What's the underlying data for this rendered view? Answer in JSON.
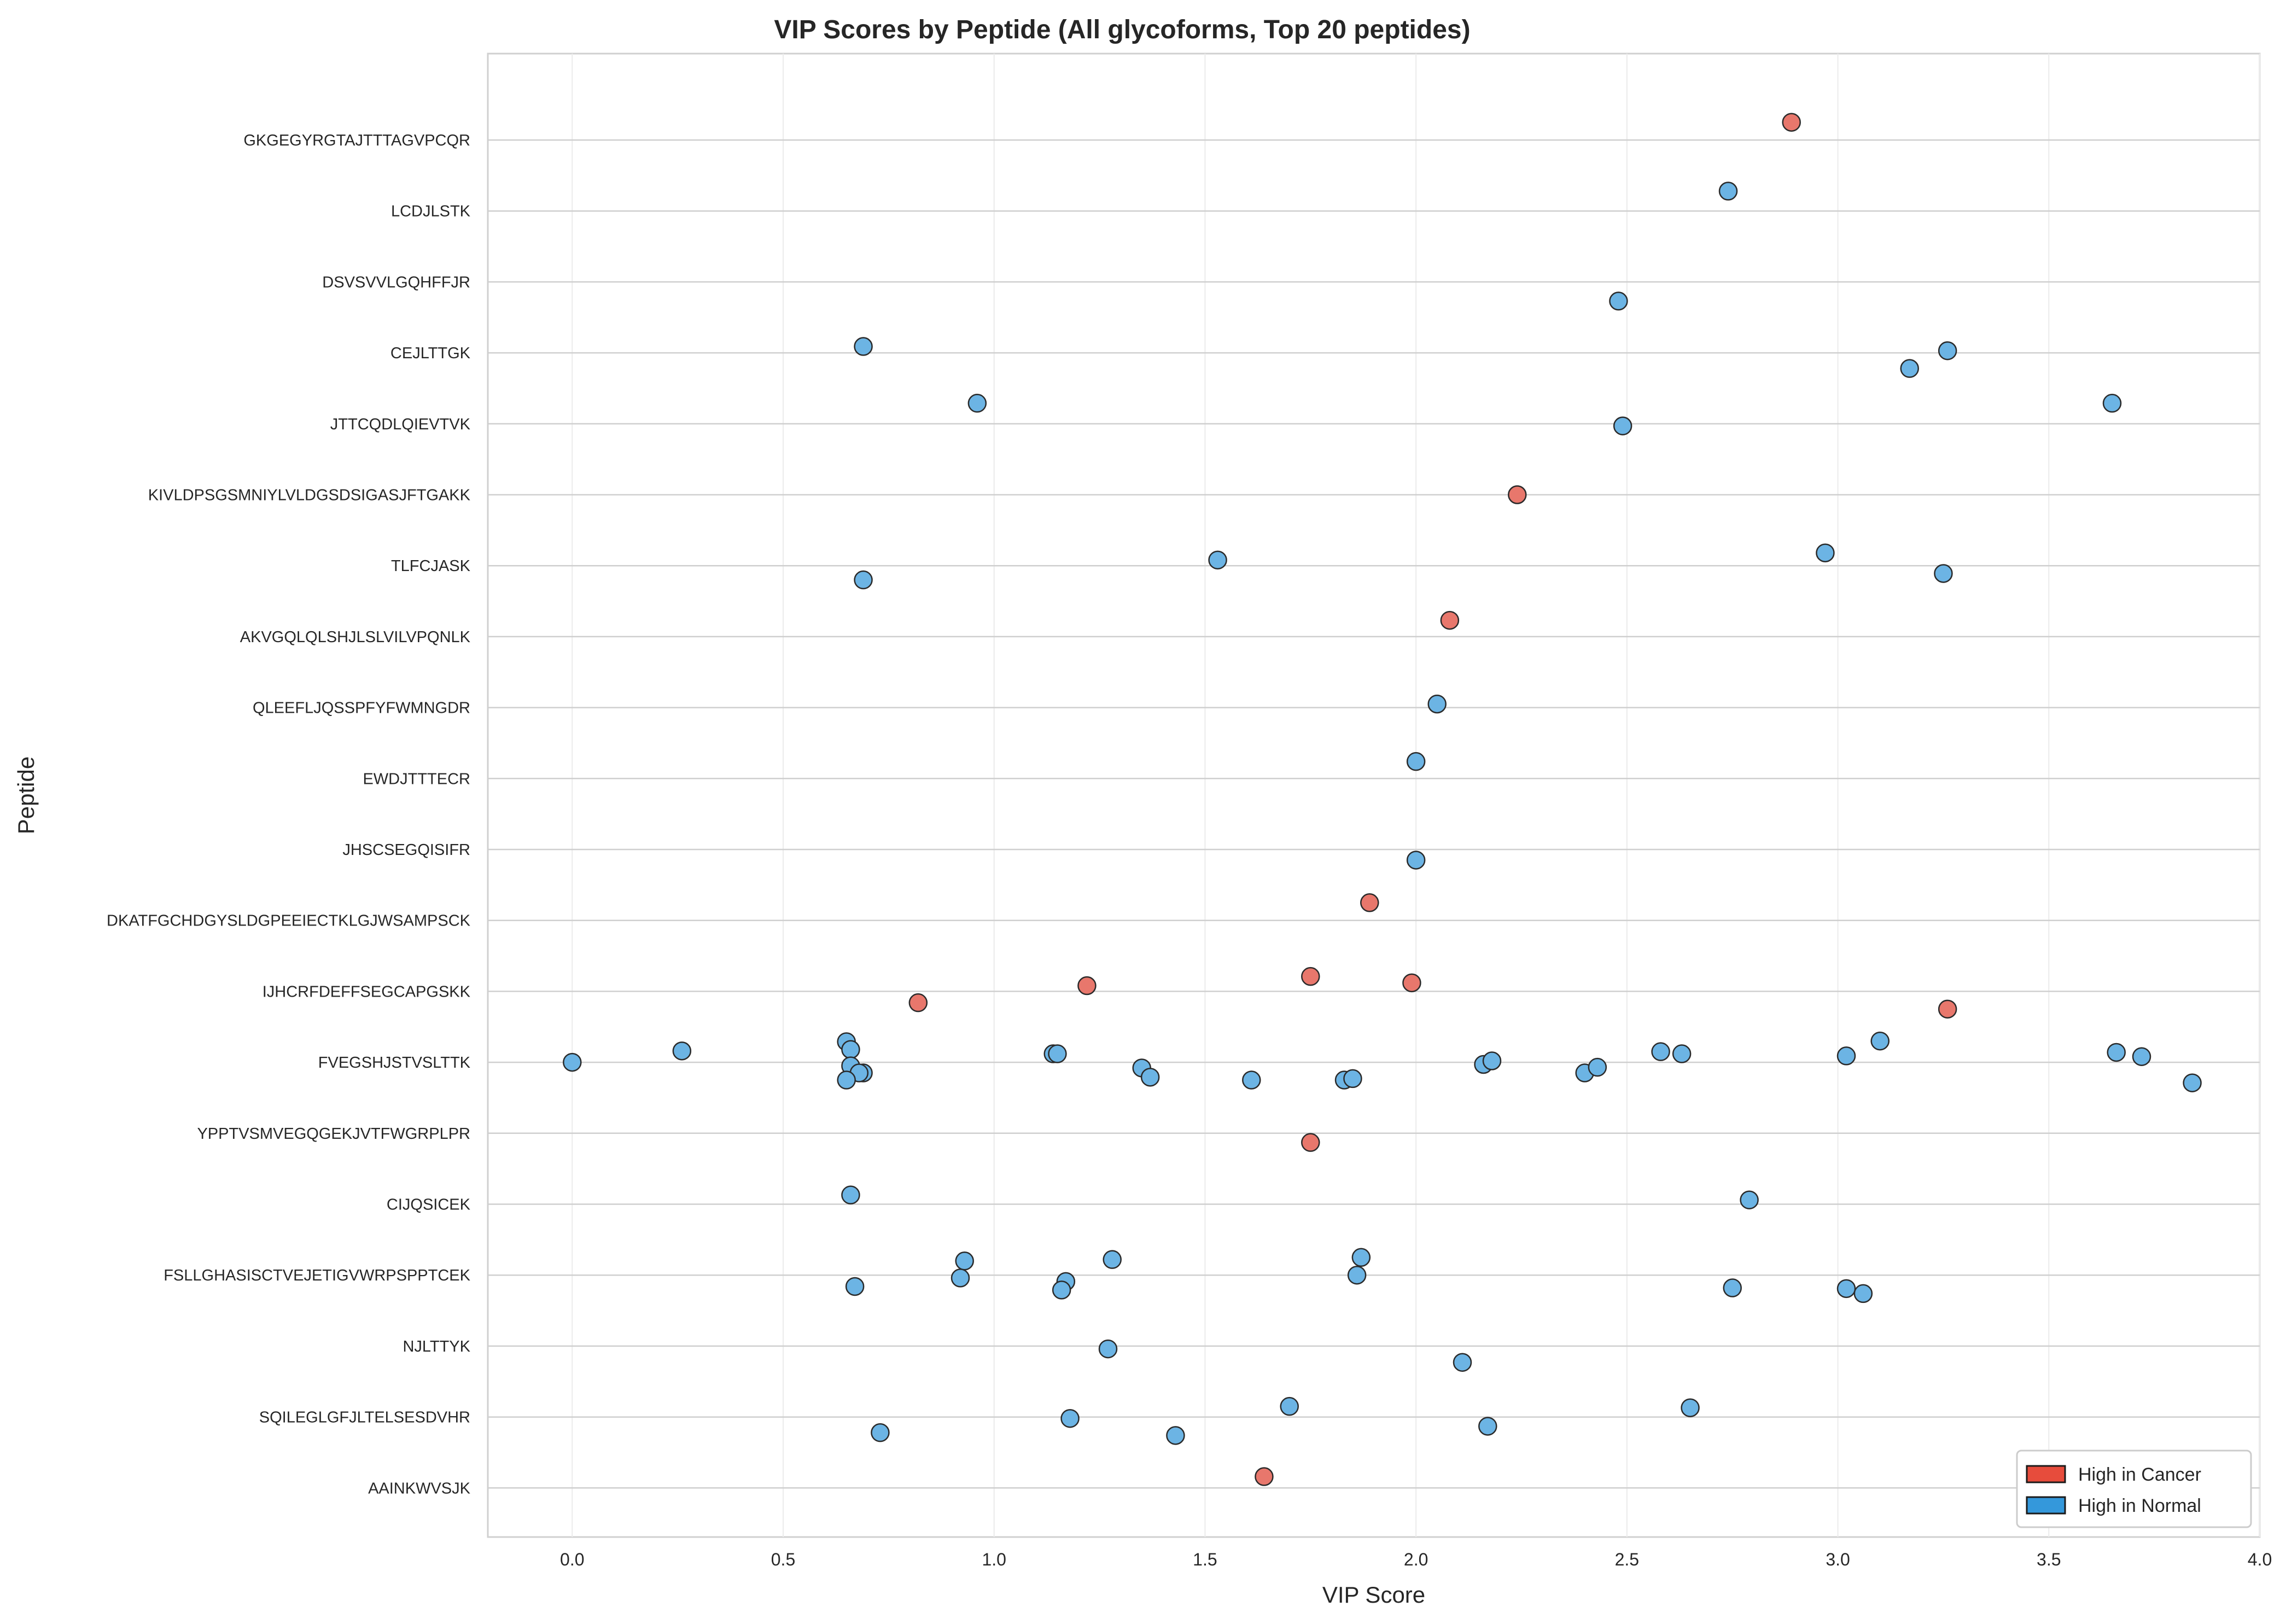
{
  "chart_data": {
    "type": "scatter",
    "title": "VIP Scores by Peptide (All glycoforms, Top 20 peptides)",
    "xlabel": "VIP Score",
    "ylabel": "Peptide",
    "xlim": [
      -0.2,
      4.0
    ],
    "xticks": [
      "0.0",
      "0.5",
      "1.0",
      "1.5",
      "2.0",
      "2.5",
      "3.0",
      "3.5",
      "4.0"
    ],
    "grid": true,
    "legend_position": "bottom-right",
    "colors": {
      "cancer": "#E8776C",
      "normal": "#6CB4E4",
      "edge": "#2a2a2a",
      "legend_cancer": "#E74C3C",
      "legend_normal": "#3498DB"
    },
    "legend": [
      {
        "key": "cancer",
        "label": "High in Cancer"
      },
      {
        "key": "normal",
        "label": "High in Normal"
      }
    ],
    "categories": [
      "GKGEGYRGTAJTTTAGVPCQR",
      "LCDJLSTK",
      "DSVSVVLGQHFFJR",
      "CEJLTTGK",
      "JTTCQDLQIEVTVK",
      "KIVLDPSGSMNIYLVLDGSDSIGASJFTGAKK",
      "TLFCJASK",
      "AKVGQLQLSHJLSLVILVPQNLK",
      "QLEEFLJQSSPFYFWMNGDR",
      "EWDJTTTECR",
      "JHSCSEGQISIFR",
      "DKATFGCHDGYSLDGPEEIECTKLGJWSAMPSCK",
      "IJHCRFDEFFSEGCAPGSKK",
      "FVEGSHJSTVSLTTK",
      "YPPTVSMVEGQGEKJVTFWGRPLPR",
      "CIJQSICEK",
      "FSLLGHASISCTVEJETIGVWRPSPPTCEK",
      "NJLTTYK",
      "SQILEGLGFJLTELSESDVHR",
      "AAINKWVSJK"
    ],
    "points": [
      {
        "peptide": "GKGEGYRGTAJTTTAGVPCQR",
        "vip": 2.89,
        "group": "cancer",
        "jitter": -0.25
      },
      {
        "peptide": "LCDJLSTK",
        "vip": 2.74,
        "group": "normal",
        "jitter": -0.28
      },
      {
        "peptide": "DSVSVVLGQHFFJR",
        "vip": 2.48,
        "group": "normal",
        "jitter": 0.27
      },
      {
        "peptide": "CEJLTTGK",
        "vip": 0.69,
        "group": "normal",
        "jitter": -0.09
      },
      {
        "peptide": "CEJLTTGK",
        "vip": 3.26,
        "group": "normal",
        "jitter": -0.03
      },
      {
        "peptide": "CEJLTTGK",
        "vip": 3.17,
        "group": "normal",
        "jitter": 0.22
      },
      {
        "peptide": "JTTCQDLQIEVTVK",
        "vip": 0.96,
        "group": "normal",
        "jitter": -0.29
      },
      {
        "peptide": "JTTCQDLQIEVTVK",
        "vip": 3.65,
        "group": "normal",
        "jitter": -0.29
      },
      {
        "peptide": "JTTCQDLQIEVTVK",
        "vip": 2.49,
        "group": "normal",
        "jitter": 0.03
      },
      {
        "peptide": "KIVLDPSGSMNIYLVLDGSDSIGASJFTGAKK",
        "vip": 2.24,
        "group": "cancer",
        "jitter": 0.0
      },
      {
        "peptide": "TLFCJASK",
        "vip": 1.53,
        "group": "normal",
        "jitter": -0.08
      },
      {
        "peptide": "TLFCJASK",
        "vip": 2.97,
        "group": "normal",
        "jitter": -0.18
      },
      {
        "peptide": "TLFCJASK",
        "vip": 3.25,
        "group": "normal",
        "jitter": 0.11
      },
      {
        "peptide": "TLFCJASK",
        "vip": 0.69,
        "group": "normal",
        "jitter": 0.2
      },
      {
        "peptide": "AKVGQLQLSHJLSLVILVPQNLK",
        "vip": 2.08,
        "group": "cancer",
        "jitter": -0.23
      },
      {
        "peptide": "QLEEFLJQSSPFYFWMNGDR",
        "vip": 2.05,
        "group": "normal",
        "jitter": -0.05
      },
      {
        "peptide": "EWDJTTTECR",
        "vip": 2.0,
        "group": "normal",
        "jitter": -0.24
      },
      {
        "peptide": "JHSCSEGQISIFR",
        "vip": 2.0,
        "group": "normal",
        "jitter": 0.15
      },
      {
        "peptide": "DKATFGCHDGYSLDGPEEIECTKLGJWSAMPSCK",
        "vip": 1.89,
        "group": "cancer",
        "jitter": -0.25
      },
      {
        "peptide": "IJHCRFDEFFSEGCAPGSKK",
        "vip": 1.75,
        "group": "cancer",
        "jitter": -0.21
      },
      {
        "peptide": "IJHCRFDEFFSEGCAPGSKK",
        "vip": 1.99,
        "group": "cancer",
        "jitter": -0.12
      },
      {
        "peptide": "IJHCRFDEFFSEGCAPGSKK",
        "vip": 1.22,
        "group": "cancer",
        "jitter": -0.08
      },
      {
        "peptide": "IJHCRFDEFFSEGCAPGSKK",
        "vip": 0.82,
        "group": "cancer",
        "jitter": 0.16
      },
      {
        "peptide": "IJHCRFDEFFSEGCAPGSKK",
        "vip": 3.26,
        "group": "cancer",
        "jitter": 0.25
      },
      {
        "peptide": "FVEGSHJSTVSLTTK",
        "vip": 0.0,
        "group": "normal",
        "jitter": 0.0
      },
      {
        "peptide": "FVEGSHJSTVSLTTK",
        "vip": 0.26,
        "group": "normal",
        "jitter": -0.16
      },
      {
        "peptide": "FVEGSHJSTVSLTTK",
        "vip": 0.65,
        "group": "normal",
        "jitter": -0.29
      },
      {
        "peptide": "FVEGSHJSTVSLTTK",
        "vip": 0.66,
        "group": "normal",
        "jitter": -0.18
      },
      {
        "peptide": "FVEGSHJSTVSLTTK",
        "vip": 0.66,
        "group": "normal",
        "jitter": 0.05
      },
      {
        "peptide": "FVEGSHJSTVSLTTK",
        "vip": 0.69,
        "group": "normal",
        "jitter": 0.15
      },
      {
        "peptide": "FVEGSHJSTVSLTTK",
        "vip": 0.68,
        "group": "normal",
        "jitter": 0.15
      },
      {
        "peptide": "FVEGSHJSTVSLTTK",
        "vip": 0.65,
        "group": "normal",
        "jitter": 0.25
      },
      {
        "peptide": "FVEGSHJSTVSLTTK",
        "vip": 1.14,
        "group": "normal",
        "jitter": -0.12
      },
      {
        "peptide": "FVEGSHJSTVSLTTK",
        "vip": 1.15,
        "group": "normal",
        "jitter": -0.12
      },
      {
        "peptide": "FVEGSHJSTVSLTTK",
        "vip": 1.35,
        "group": "normal",
        "jitter": 0.08
      },
      {
        "peptide": "FVEGSHJSTVSLTTK",
        "vip": 1.37,
        "group": "normal",
        "jitter": 0.21
      },
      {
        "peptide": "FVEGSHJSTVSLTTK",
        "vip": 1.61,
        "group": "normal",
        "jitter": 0.25
      },
      {
        "peptide": "FVEGSHJSTVSLTTK",
        "vip": 1.83,
        "group": "normal",
        "jitter": 0.25
      },
      {
        "peptide": "FVEGSHJSTVSLTTK",
        "vip": 1.85,
        "group": "normal",
        "jitter": 0.23
      },
      {
        "peptide": "FVEGSHJSTVSLTTK",
        "vip": 2.16,
        "group": "normal",
        "jitter": 0.03
      },
      {
        "peptide": "FVEGSHJSTVSLTTK",
        "vip": 2.18,
        "group": "normal",
        "jitter": -0.02
      },
      {
        "peptide": "FVEGSHJSTVSLTTK",
        "vip": 2.4,
        "group": "normal",
        "jitter": 0.15
      },
      {
        "peptide": "FVEGSHJSTVSLTTK",
        "vip": 2.43,
        "group": "normal",
        "jitter": 0.07
      },
      {
        "peptide": "FVEGSHJSTVSLTTK",
        "vip": 2.58,
        "group": "normal",
        "jitter": -0.15
      },
      {
        "peptide": "FVEGSHJSTVSLTTK",
        "vip": 2.63,
        "group": "normal",
        "jitter": -0.12
      },
      {
        "peptide": "FVEGSHJSTVSLTTK",
        "vip": 3.02,
        "group": "normal",
        "jitter": -0.09
      },
      {
        "peptide": "FVEGSHJSTVSLTTK",
        "vip": 3.1,
        "group": "normal",
        "jitter": -0.3
      },
      {
        "peptide": "FVEGSHJSTVSLTTK",
        "vip": 3.66,
        "group": "normal",
        "jitter": -0.14
      },
      {
        "peptide": "FVEGSHJSTVSLTTK",
        "vip": 3.72,
        "group": "normal",
        "jitter": -0.08
      },
      {
        "peptide": "FVEGSHJSTVSLTTK",
        "vip": 3.84,
        "group": "normal",
        "jitter": 0.29
      },
      {
        "peptide": "YPPTVSMVEGQGEKJVTFWGRPLPR",
        "vip": 1.75,
        "group": "cancer",
        "jitter": 0.13
      },
      {
        "peptide": "CIJQSICEK",
        "vip": 0.66,
        "group": "normal",
        "jitter": -0.13
      },
      {
        "peptide": "CIJQSICEK",
        "vip": 2.79,
        "group": "normal",
        "jitter": -0.06
      },
      {
        "peptide": "FSLLGHASISCTVEJETIGVWRPSPPTCEK",
        "vip": 0.93,
        "group": "normal",
        "jitter": -0.2
      },
      {
        "peptide": "FSLLGHASISCTVEJETIGVWRPSPPTCEK",
        "vip": 0.92,
        "group": "normal",
        "jitter": 0.04
      },
      {
        "peptide": "FSLLGHASISCTVEJETIGVWRPSPPTCEK",
        "vip": 0.67,
        "group": "normal",
        "jitter": 0.16
      },
      {
        "peptide": "FSLLGHASISCTVEJETIGVWRPSPPTCEK",
        "vip": 1.28,
        "group": "normal",
        "jitter": -0.22
      },
      {
        "peptide": "FSLLGHASISCTVEJETIGVWRPSPPTCEK",
        "vip": 1.17,
        "group": "normal",
        "jitter": 0.09
      },
      {
        "peptide": "FSLLGHASISCTVEJETIGVWRPSPPTCEK",
        "vip": 1.16,
        "group": "normal",
        "jitter": 0.21
      },
      {
        "peptide": "FSLLGHASISCTVEJETIGVWRPSPPTCEK",
        "vip": 1.87,
        "group": "normal",
        "jitter": -0.25
      },
      {
        "peptide": "FSLLGHASISCTVEJETIGVWRPSPPTCEK",
        "vip": 1.86,
        "group": "normal",
        "jitter": 0.0
      },
      {
        "peptide": "FSLLGHASISCTVEJETIGVWRPSPPTCEK",
        "vip": 2.75,
        "group": "normal",
        "jitter": 0.18
      },
      {
        "peptide": "FSLLGHASISCTVEJETIGVWRPSPPTCEK",
        "vip": 3.02,
        "group": "normal",
        "jitter": 0.19
      },
      {
        "peptide": "FSLLGHASISCTVEJETIGVWRPSPPTCEK",
        "vip": 3.06,
        "group": "normal",
        "jitter": 0.26
      },
      {
        "peptide": "NJLTTYK",
        "vip": 1.27,
        "group": "normal",
        "jitter": 0.04
      },
      {
        "peptide": "NJLTTYK",
        "vip": 2.11,
        "group": "normal",
        "jitter": 0.23
      },
      {
        "peptide": "SQILEGLGFJLTELSESDVHR",
        "vip": 1.7,
        "group": "normal",
        "jitter": -0.15
      },
      {
        "peptide": "SQILEGLGFJLTELSESDVHR",
        "vip": 2.65,
        "group": "normal",
        "jitter": -0.13
      },
      {
        "peptide": "SQILEGLGFJLTELSESDVHR",
        "vip": 1.18,
        "group": "normal",
        "jitter": 0.02
      },
      {
        "peptide": "SQILEGLGFJLTELSESDVHR",
        "vip": 2.17,
        "group": "normal",
        "jitter": 0.13
      },
      {
        "peptide": "SQILEGLGFJLTELSESDVHR",
        "vip": 0.73,
        "group": "normal",
        "jitter": 0.22
      },
      {
        "peptide": "SQILEGLGFJLTELSESDVHR",
        "vip": 1.43,
        "group": "normal",
        "jitter": 0.26
      },
      {
        "peptide": "AAINKWVSJK",
        "vip": 1.64,
        "group": "cancer",
        "jitter": -0.16
      }
    ]
  }
}
